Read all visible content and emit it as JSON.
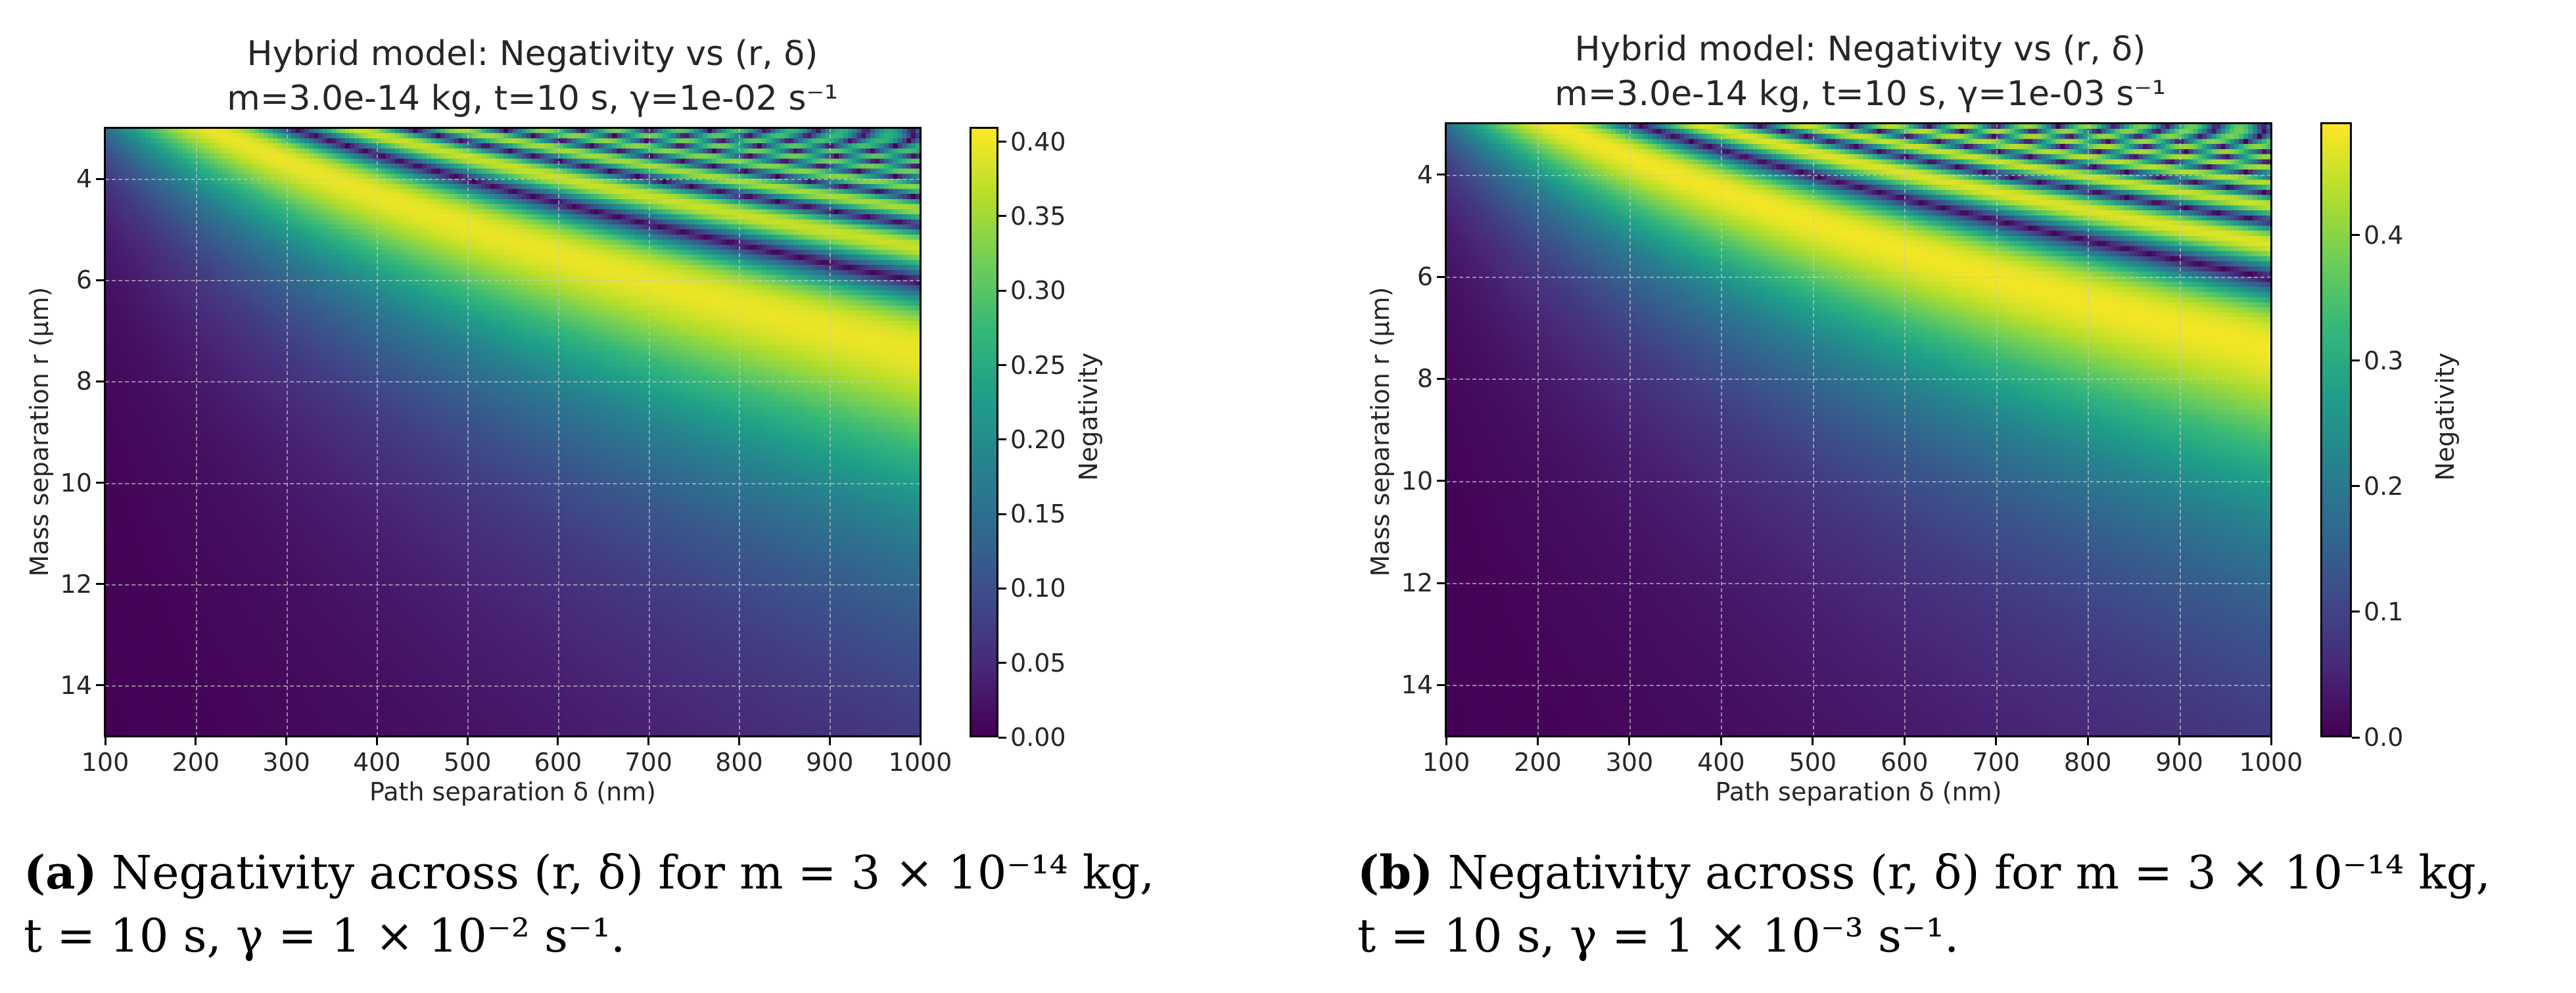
{
  "chart_data": [
    {
      "id": "a",
      "type": "heatmap",
      "title": "Hybrid model: Negativity vs (r, δ)",
      "subtitle": "m=3.0e-14 kg, t=10 s, γ=1e-02 s⁻¹",
      "xlabel": "Path separation δ (nm)",
      "ylabel": "Mass separation r (µm)",
      "xlim": [
        100,
        1000
      ],
      "ylim": [
        3,
        15
      ],
      "y_inverted": true,
      "xticks": [
        "100",
        "200",
        "300",
        "400",
        "500",
        "600",
        "700",
        "800",
        "900",
        "1000"
      ],
      "yticks": [
        "4",
        "6",
        "8",
        "10",
        "12",
        "14"
      ],
      "colorbar_label": "Negativity",
      "colorbar_range": [
        0.0,
        0.41
      ],
      "colorbar_ticks": [
        "0.00",
        "0.05",
        "0.10",
        "0.15",
        "0.20",
        "0.25",
        "0.30",
        "0.35",
        "0.40"
      ],
      "colormap": "viridis",
      "gamma": 0.01,
      "grid": true,
      "caption": {
        "label": "(a)",
        "line1": "Negativity across (r, δ) for m = 3 × 10⁻¹⁴ kg,",
        "line2": "t = 10 s, γ = 1 × 10⁻² s⁻¹."
      }
    },
    {
      "id": "b",
      "type": "heatmap",
      "title": "Hybrid model: Negativity vs (r, δ)",
      "subtitle": "m=3.0e-14 kg, t=10 s, γ=1e-03 s⁻¹",
      "xlabel": "Path separation δ (nm)",
      "ylabel": "Mass separation r (µm)",
      "xlim": [
        100,
        1000
      ],
      "ylim": [
        3,
        15
      ],
      "y_inverted": true,
      "xticks": [
        "100",
        "200",
        "300",
        "400",
        "500",
        "600",
        "700",
        "800",
        "900",
        "1000"
      ],
      "yticks": [
        "4",
        "6",
        "8",
        "10",
        "12",
        "14"
      ],
      "colorbar_label": "Negativity",
      "colorbar_range": [
        0.0,
        0.49
      ],
      "colorbar_ticks": [
        "0.0",
        "0.1",
        "0.2",
        "0.3",
        "0.4"
      ],
      "colormap": "viridis",
      "gamma": 0.001,
      "grid": true,
      "caption": {
        "label": "(b)",
        "line1": "Negativity across (r, δ) for m = 3 × 10⁻¹⁴ kg,",
        "line2": "t = 10 s, γ = 1 × 10⁻³ s⁻¹."
      }
    }
  ]
}
